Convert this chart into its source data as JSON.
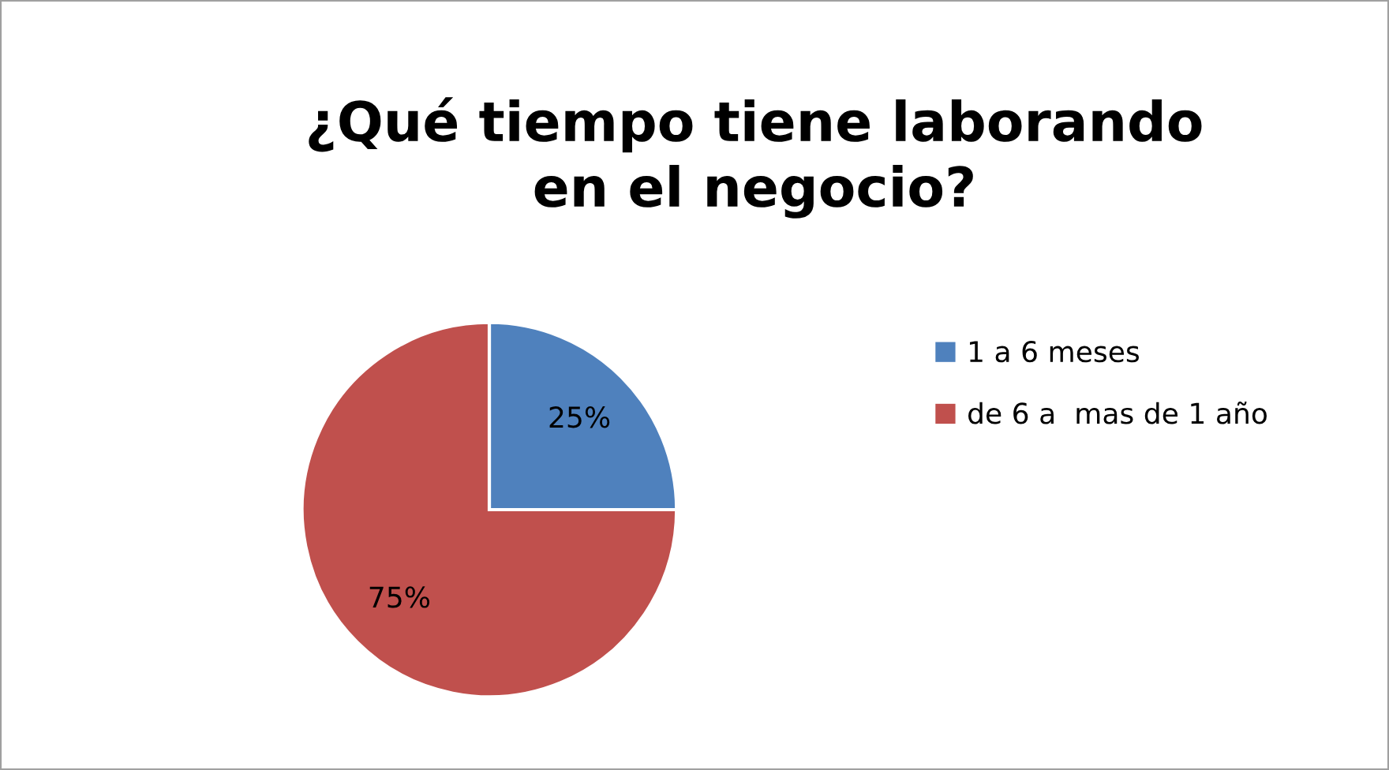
{
  "chart_data": {
    "type": "pie",
    "title": "¿Qué tiempo tiene laborando\nen el negocio?",
    "categories": [
      "1 a 6 meses",
      "de 6 a  mas de 1 año"
    ],
    "values": [
      25,
      75
    ],
    "colors": [
      "#4f81bd",
      "#c0504d"
    ],
    "value_labels": [
      "25%",
      "75%"
    ],
    "legend": "right"
  }
}
